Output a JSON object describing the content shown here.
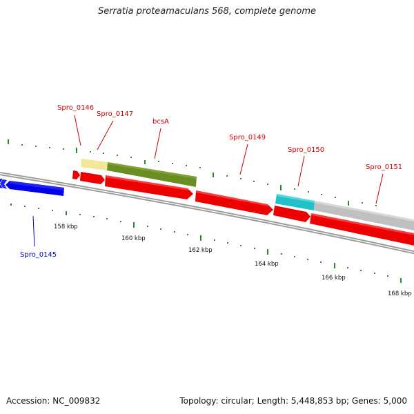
{
  "title": "Serratia proteamaculans 568, complete genome",
  "footer": {
    "accession": "Accession: NC_009832",
    "summary": "Topology: circular; Length: 5,448,853 bp; Genes: 5,000"
  },
  "colors": {
    "backbone": "#7a7a7a",
    "tick": "#2a8a2a",
    "label_red": "#cc0000",
    "label_blue": "#0000cc"
  },
  "scale_labels": [
    "158 kbp",
    "160 kbp",
    "162 kbp",
    "164 kbp",
    "166 kbp",
    "168 kbp"
  ],
  "genes": [
    {
      "name": "Spro_0145",
      "color": "#0000ee",
      "strand": "reverse",
      "label_color": "#0000cc"
    },
    {
      "name": "Spro_0146",
      "color": "#f3e79b",
      "strand": "forward",
      "label_color": "#cc0000"
    },
    {
      "name": "Spro_0147",
      "color": "#6b8e23",
      "strand": "forward",
      "label_color": "#cc0000"
    },
    {
      "name": "bcsA",
      "color": "#ee0000",
      "strand": "forward",
      "label_color": "#cc0000"
    },
    {
      "name": "Spro_0149",
      "color": "#ee0000",
      "strand": "forward",
      "label_color": "#cc0000"
    },
    {
      "name": "Spro_0150",
      "color": "#22c1c9",
      "strand": "forward",
      "label_color": "#cc0000"
    },
    {
      "name": "Spro_0151",
      "color": "#c0c0c0",
      "strand": "forward",
      "label_color": "#cc0000"
    }
  ]
}
